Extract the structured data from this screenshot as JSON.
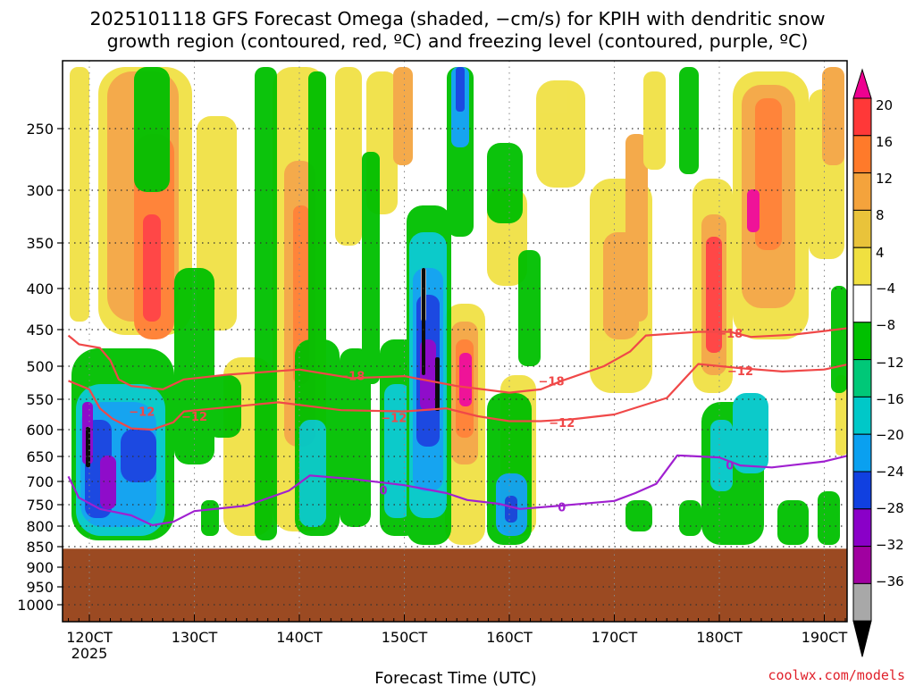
{
  "title_line1": "2025101118 GFS Forecast Omega (shaded, −cm/s) for KPIH with dendritic snow",
  "title_line2": "growth region (contoured, red, ºC) and freezing level (contoured, purple, ºC)",
  "credit": "coolwx.com/models",
  "chart_data": {
    "type": "contour-time-height",
    "title": "2025101118 GFS Forecast Omega (shaded, −cm/s) for KPIH with dendritic snow growth region (contoured, red, ºC) and freezing level (contoured, purple, ºC)",
    "xlabel": "Forecast Time (UTC)",
    "x_ticks": [
      {
        "hour": 120,
        "label": "120CT"
      },
      {
        "hour": 130,
        "label": "130CT"
      },
      {
        "hour": 140,
        "label": "140CT"
      },
      {
        "hour": 150,
        "label": "150CT"
      },
      {
        "hour": 160,
        "label": "160CT"
      },
      {
        "hour": 170,
        "label": "170CT"
      },
      {
        "hour": 180,
        "label": "180CT"
      },
      {
        "hour": 190,
        "label": "190CT"
      }
    ],
    "x_year_label": "2025",
    "xlim_hours": [
      118,
      193
    ],
    "y_ticks": [
      {
        "p": 250,
        "label": "250"
      },
      {
        "p": 300,
        "label": "300"
      },
      {
        "p": 350,
        "label": "350"
      },
      {
        "p": 400,
        "label": "400"
      },
      {
        "p": 450,
        "label": "450"
      },
      {
        "p": 500,
        "label": "500"
      },
      {
        "p": 550,
        "label": "550"
      },
      {
        "p": 600,
        "label": "600"
      },
      {
        "p": 650,
        "label": "650"
      },
      {
        "p": 700,
        "label": "700"
      },
      {
        "p": 750,
        "label": "750"
      },
      {
        "p": 800,
        "label": "800"
      },
      {
        "p": 850,
        "label": "850"
      },
      {
        "p": 900,
        "label": "900"
      },
      {
        "p": 950,
        "label": "950"
      },
      {
        "p": 1000,
        "label": "1000"
      }
    ],
    "ylim_hpa": [
      200,
      1050
    ],
    "surface_pressure_hpa": 855,
    "colorbar": {
      "levels": [
        "20",
        "16",
        "12",
        "8",
        "4",
        "−4",
        "−8",
        "−12",
        "−16",
        "−20",
        "−24",
        "−28",
        "−32",
        "−36"
      ],
      "colors": [
        "#ee0090",
        "#ff3838",
        "#ff7a2a",
        "#f4a33c",
        "#e9c33a",
        "#f0e040",
        "#ffffff",
        "#00c000",
        "#00c878",
        "#00c8c8",
        "#0aa0f0",
        "#1040e0",
        "#8a00c8",
        "#a000a0",
        "#a8a8a8",
        "#000000"
      ]
    },
    "series": [
      {
        "name": "-18 ºC isotherm (dendritic top)",
        "color": "#f04848",
        "label": "−18",
        "points": [
          [
            118,
            458
          ],
          [
            119,
            470
          ],
          [
            121,
            475
          ],
          [
            122,
            492
          ],
          [
            122.8,
            520
          ],
          [
            124,
            530
          ],
          [
            127,
            535
          ],
          [
            129,
            520
          ],
          [
            133,
            513
          ],
          [
            140,
            505
          ],
          [
            145,
            518
          ],
          [
            150,
            515
          ],
          [
            155,
            530
          ],
          [
            160,
            540
          ],
          [
            163,
            535
          ],
          [
            165,
            522
          ],
          [
            169,
            500
          ],
          [
            170.5,
            488
          ],
          [
            171.5,
            480
          ],
          [
            173,
            458
          ],
          [
            178,
            453
          ],
          [
            181,
            453
          ],
          [
            183,
            460
          ],
          [
            187,
            457
          ],
          [
            190,
            452
          ],
          [
            193,
            447
          ]
        ],
        "labels_at": [
          [
            145,
            514,
            "−18"
          ],
          [
            164,
            522,
            "−18"
          ],
          [
            181,
            455,
            "−18"
          ]
        ]
      },
      {
        "name": "-12 ºC isotherm (dendritic bottom)",
        "color": "#f04848",
        "label": "−12",
        "points": [
          [
            118,
            522
          ],
          [
            120,
            535
          ],
          [
            121,
            565
          ],
          [
            122.2,
            582
          ],
          [
            124,
            598
          ],
          [
            126,
            600
          ],
          [
            128,
            588
          ],
          [
            129,
            570
          ],
          [
            132,
            565
          ],
          [
            138,
            555
          ],
          [
            144,
            568
          ],
          [
            150,
            570
          ],
          [
            154,
            565
          ],
          [
            157,
            578
          ],
          [
            160,
            586
          ],
          [
            163,
            586
          ],
          [
            166,
            583
          ],
          [
            170,
            575
          ],
          [
            175,
            548
          ],
          [
            178,
            497
          ],
          [
            182,
            503
          ],
          [
            186,
            508
          ],
          [
            190,
            505
          ],
          [
            193,
            495
          ]
        ],
        "labels_at": [
          [
            125,
            570,
            "−12"
          ],
          [
            130,
            578,
            "−12"
          ],
          [
            149,
            580,
            "−12"
          ],
          [
            165,
            588,
            "−12"
          ],
          [
            182,
            507,
            "−12"
          ]
        ]
      },
      {
        "name": "0 ºC isotherm (freezing level)",
        "color": "#a020d0",
        "label": "0",
        "points": [
          [
            118,
            690
          ],
          [
            119,
            735
          ],
          [
            121,
            760
          ],
          [
            124,
            775
          ],
          [
            126,
            798
          ],
          [
            128,
            790
          ],
          [
            130,
            765
          ],
          [
            135,
            752
          ],
          [
            139,
            720
          ],
          [
            141,
            688
          ],
          [
            145,
            695
          ],
          [
            150,
            708
          ],
          [
            154,
            725
          ],
          [
            156,
            740
          ],
          [
            159,
            748
          ],
          [
            161,
            760
          ],
          [
            165,
            752
          ],
          [
            170,
            742
          ],
          [
            172,
            725
          ],
          [
            174,
            705
          ],
          [
            176,
            648
          ],
          [
            180,
            652
          ],
          [
            182,
            668
          ],
          [
            185,
            672
          ],
          [
            190,
            660
          ],
          [
            193,
            645
          ]
        ],
        "labels_at": [
          [
            148,
            718,
            "0"
          ],
          [
            165,
            755,
            "0"
          ],
          [
            181,
            667,
            "0"
          ]
        ]
      }
    ]
  }
}
